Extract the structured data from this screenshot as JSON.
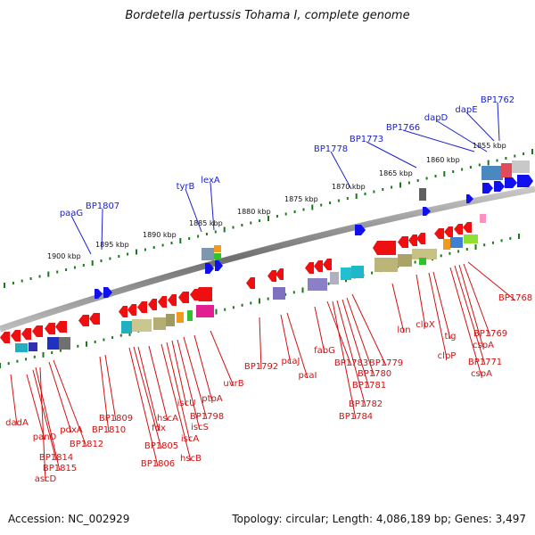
{
  "title": "Bordetella pertussis Tohama I, complete genome",
  "footer": {
    "accession": "Accession: NC_002929",
    "summary": "Topology: circular; Length: 4,086,189 bp; Genes: 3,497"
  },
  "colors": {
    "forward_label": "#1c22cf",
    "reverse_label": "#d21010",
    "forward_gene": "#1010ee",
    "reverse_gene": "#ee1010",
    "tick": "#1a7a1a",
    "backbone": "#8a8a8a"
  },
  "scale_labels": [
    "1900 kbp",
    "1895 kbp",
    "1890 kbp",
    "1885 kbp",
    "1880 kbp",
    "1875 kbp",
    "1870 kbp",
    "1865 kbp",
    "1860 kbp",
    "1855 kbp"
  ],
  "forward_genes": [
    "paaG",
    "BP1807",
    "tyrB",
    "lexA",
    "BP1778",
    "BP1773",
    "BP1766",
    "dapD",
    "dapE",
    "BP1762"
  ],
  "reverse_genes": [
    "dadA",
    "panD",
    "BP1814",
    "BP1815",
    "ascD",
    "pdxA",
    "BP1812",
    "BP1809",
    "BP1810",
    "fdx",
    "BP1805",
    "BP1806",
    "hscA",
    "iscU",
    "iscA",
    "hscB",
    "iscS",
    "BP1798",
    "ptpA",
    "uvrB",
    "BP1792",
    "pcaJ",
    "pcaI",
    "fabG",
    "BP1783",
    "BP1784",
    "BP1782",
    "BP1781",
    "BP1780",
    "BP1779",
    "lon",
    "clpX",
    "clpP",
    "tig",
    "BP1771",
    "cspA",
    "BP1769",
    "cspA",
    "BP1768"
  ]
}
